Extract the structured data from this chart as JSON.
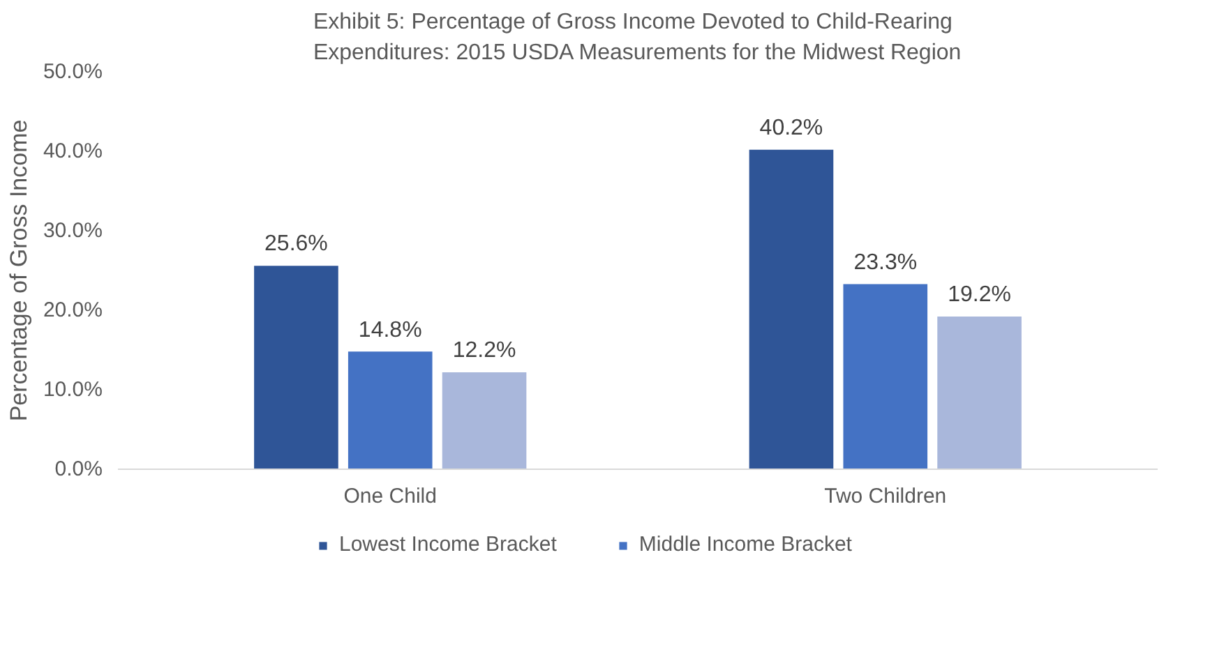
{
  "chart_data": {
    "type": "bar",
    "title": "Exhibit 5: Percentage of Gross Income Devoted to Child-Rearing\nExpenditures: 2015 USDA Measurements for the Midwest Region",
    "ylabel": "Percentage of Gross Income",
    "categories": [
      "One Child",
      "Two Children"
    ],
    "series": [
      {
        "name": "Lowest Income Bracket",
        "color": "#2f5597",
        "values": [
          25.6,
          40.2
        ],
        "value_labels": [
          "25.6%",
          "40.2%"
        ]
      },
      {
        "name": "Middle Income Bracket",
        "color": "#4472c4",
        "values": [
          14.8,
          23.3
        ],
        "value_labels": [
          "14.8%",
          "23.3%"
        ]
      },
      {
        "color": "#a9b7db",
        "values": [
          12.2,
          19.2
        ],
        "value_labels": [
          "12.2%",
          "19.2%"
        ]
      }
    ],
    "ylim": [
      0,
      50
    ],
    "yticks": [
      {
        "value": 0,
        "label": "0.0%"
      },
      {
        "value": 10,
        "label": "10.0%"
      },
      {
        "value": 20,
        "label": "20.0%"
      },
      {
        "value": 30,
        "label": "30.0%"
      },
      {
        "value": 40,
        "label": "40.0%"
      },
      {
        "value": 50,
        "label": "50.0%"
      }
    ],
    "grid": false,
    "legend": "bottom"
  }
}
